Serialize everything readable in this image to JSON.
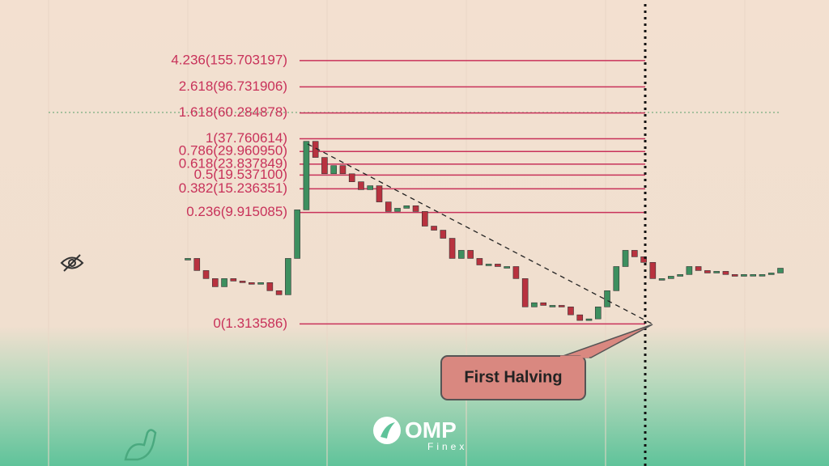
{
  "chart_data": {
    "type": "candlestick",
    "values": [
      4.31,
      3.46,
      2.99,
      2.58,
      2.99,
      2.86,
      2.78,
      2.7,
      2.78,
      2.4,
      2.23,
      4.31,
      10.4,
      36.0,
      26.9,
      20.0,
      23.2,
      20.0,
      17.3,
      15.0,
      16.1,
      12.0,
      10.1,
      10.7,
      11.2,
      10.1,
      7.74,
      7.19,
      6.21,
      4.31,
      4.99,
      4.31,
      3.83,
      3.89,
      3.72,
      3.72,
      2.99,
      1.79,
      1.93,
      1.84,
      1.84,
      1.79,
      1.55,
      1.4,
      1.44,
      1.79,
      2.4,
      3.72,
      4.99,
      4.44,
      4.01,
      2.99,
      2.99,
      3.12,
      3.22,
      3.72,
      3.46,
      3.31,
      3.41,
      3.22,
      3.12,
      3.22,
      3.22,
      3.22,
      3.31,
      3.61
    ],
    "log_scale": true,
    "ylim": [
      0.1,
      467
    ],
    "up_color": "#3d8f5f",
    "down_color": "#b8323f",
    "fib_color": "#c8325a",
    "fib_levels": [
      {
        "value": 155.703197,
        "label": "4.236(155.703197)"
      },
      {
        "value": 96.731906,
        "label": "2.618(96.731906)"
      },
      {
        "value": 60.284878,
        "label": "1.618(60.284878)"
      },
      {
        "value": 37.760614,
        "label": "1(37.760614)"
      },
      {
        "value": 29.96095,
        "label": "0.786(29.960950)"
      },
      {
        "value": 23.837849,
        "label": "0.618(23.837849)"
      },
      {
        "value": 19.5371,
        "label": "0.5(19.537100)"
      },
      {
        "value": 15.236351,
        "label": "0.382(15.236351)"
      },
      {
        "value": 9.915085,
        "label": "0.236(9.915085)"
      },
      {
        "value": 1.313586,
        "label": "0(1.313586)"
      }
    ],
    "annotation": "First Halving"
  },
  "logo": {
    "name": "OMP",
    "tagline": "Finex"
  }
}
